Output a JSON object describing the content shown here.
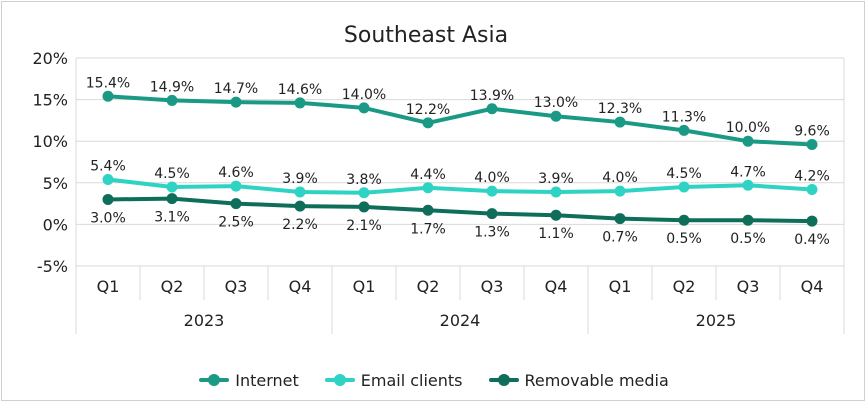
{
  "chart_data": {
    "type": "line",
    "title": "Southeast Asia",
    "quarters": [
      "Q1",
      "Q2",
      "Q3",
      "Q4",
      "Q1",
      "Q2",
      "Q3",
      "Q4",
      "Q1",
      "Q2",
      "Q3",
      "Q4"
    ],
    "years": [
      "2023",
      "2024",
      "2025"
    ],
    "ylim": [
      -5,
      20
    ],
    "yticks": [
      "-5%",
      "0%",
      "5%",
      "10%",
      "15%",
      "20%"
    ],
    "grid": true,
    "legend_position": "bottom",
    "series": [
      {
        "name": "Internet",
        "color": "#1a9a84",
        "values": [
          15.4,
          14.9,
          14.7,
          14.6,
          14.0,
          12.2,
          13.9,
          13.0,
          12.3,
          11.3,
          10.0,
          9.6
        ],
        "labels": [
          "15.4%",
          "14.9%",
          "14.7%",
          "14.6%",
          "14.0%",
          "12.2%",
          "13.9%",
          "13.0%",
          "12.3%",
          "11.3%",
          "10.0%",
          "9.6%"
        ]
      },
      {
        "name": "Email clients",
        "color": "#2fd3c3",
        "values": [
          5.4,
          4.5,
          4.6,
          3.9,
          3.8,
          4.4,
          4.0,
          3.9,
          4.0,
          4.5,
          4.7,
          4.2
        ],
        "labels": [
          "5.4%",
          "4.5%",
          "4.6%",
          "3.9%",
          "3.8%",
          "4.4%",
          "4.0%",
          "3.9%",
          "4.0%",
          "4.5%",
          "4.7%",
          "4.2%"
        ]
      },
      {
        "name": "Removable media",
        "color": "#0f6e5a",
        "values": [
          3.0,
          3.1,
          2.5,
          2.2,
          2.1,
          1.7,
          1.3,
          1.1,
          0.7,
          0.5,
          0.5,
          0.4
        ],
        "labels": [
          "3.0%",
          "3.1%",
          "2.5%",
          "2.2%",
          "2.1%",
          "1.7%",
          "1.3%",
          "1.1%",
          "0.7%",
          "0.5%",
          "0.5%",
          "0.4%"
        ]
      }
    ]
  }
}
